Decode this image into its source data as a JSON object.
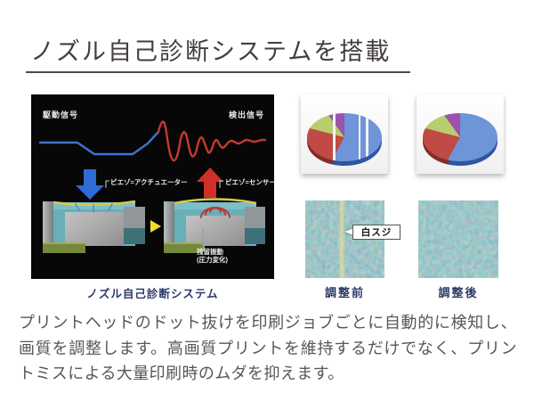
{
  "title": "ノズル自己診断システムを搭載",
  "diagram": {
    "caption": "ノズル自己診断システム",
    "drive_signal_label": "駆動信号",
    "detect_signal_label": "検出信号",
    "piezo_actuator_label": "ピエゾ=アクチュエーター",
    "piezo_sensor_label": "ピエゾ=センサー",
    "residual_vibration_label": "残留振動",
    "pressure_change_label": "(圧力変化)"
  },
  "comparison": {
    "before_caption": "調整前",
    "after_caption": "調整後",
    "white_streak_label": "白スジ"
  },
  "body_text": "プリントヘッドのドット抜けを印刷ジョブごとに自動的に検知し、画質を調整します。高画質プリントを維持するだけでなく、プリントミスによる大量印刷時のムダを抑えます。",
  "colors": {
    "caption_navy": "#2b3a66",
    "drive_wave_blue": "#3f74cc",
    "detect_wave_red": "#c53a30",
    "diagram_background": "#070707",
    "chamber_teal": "#68b0b8",
    "membrane_yellow": "#d6ca4e",
    "pointer_yellow": "#f0dc28",
    "sample_texture_teal": "#578e91"
  },
  "chart_data": {
    "type": "pie",
    "categories": [
      "blue",
      "red",
      "green",
      "purple"
    ],
    "values": [
      58,
      21,
      11,
      10
    ],
    "title": "",
    "legend": "none",
    "series_colors": [
      "#6d95d8",
      "#c04a45",
      "#b6ce6c",
      "#9c52ac"
    ],
    "depth_colors": [
      "#2e55a0",
      "#832d2a",
      "#84a042",
      "#6b3278"
    ],
    "before_stripes_pct": [
      35,
      69,
      79
    ]
  }
}
